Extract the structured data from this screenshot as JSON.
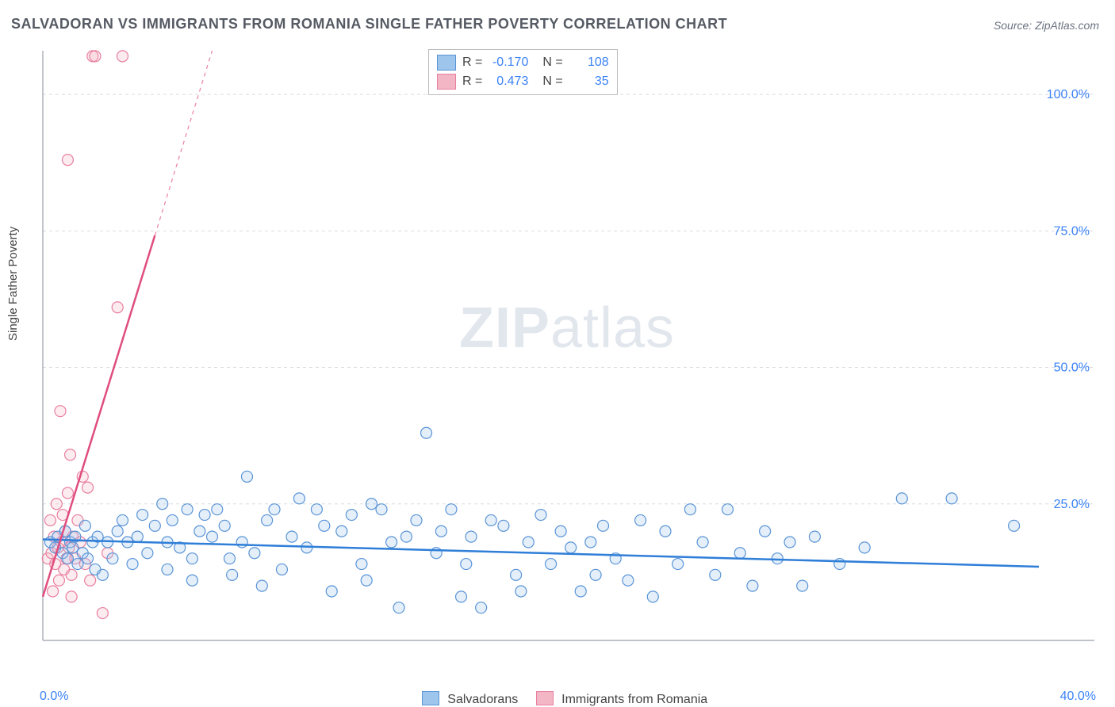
{
  "title": "SALVADORAN VS IMMIGRANTS FROM ROMANIA SINGLE FATHER POVERTY CORRELATION CHART",
  "source_prefix": "Source: ",
  "source": "ZipAtlas.com",
  "y_axis_label": "Single Father Poverty",
  "watermark_bold": "ZIP",
  "watermark_rest": "atlas",
  "chart": {
    "type": "scatter",
    "xlim": [
      0,
      40
    ],
    "ylim": [
      0,
      108
    ],
    "x_ticks": [
      {
        "v": 0,
        "label": "0.0%"
      },
      {
        "v": 40,
        "label": "40.0%"
      }
    ],
    "y_ticks": [
      {
        "v": 25,
        "label": "25.0%"
      },
      {
        "v": 50,
        "label": "50.0%"
      },
      {
        "v": 75,
        "label": "75.0%"
      },
      {
        "v": 100,
        "label": "100.0%"
      }
    ],
    "grid_color": "#d7dbe0",
    "grid_dash": "4,4",
    "axis_color": "#9aa1ab",
    "background_color": "#ffffff",
    "marker_radius": 7,
    "marker_stroke_width": 1.2,
    "marker_fill_opacity": 0.28,
    "regression_line_width": 2.5,
    "series": [
      {
        "name": "Salvadorans",
        "color_fill": "#9ec5ec",
        "color_stroke": "#5a94d6",
        "line_color": "#2f7ed8",
        "R": "-0.170",
        "N": "108",
        "regression": {
          "x1": 0,
          "y1": 18.5,
          "x2": 40,
          "y2": 13.5,
          "dashed_after_x": null
        },
        "points": [
          [
            0.3,
            18
          ],
          [
            0.5,
            17
          ],
          [
            0.6,
            19
          ],
          [
            0.8,
            16
          ],
          [
            0.9,
            20
          ],
          [
            1.0,
            15
          ],
          [
            1.1,
            18
          ],
          [
            1.2,
            17
          ],
          [
            1.3,
            19
          ],
          [
            1.4,
            14
          ],
          [
            1.6,
            16
          ],
          [
            1.7,
            21
          ],
          [
            1.8,
            15
          ],
          [
            2.0,
            18
          ],
          [
            2.1,
            13
          ],
          [
            2.2,
            19
          ],
          [
            2.4,
            12
          ],
          [
            2.6,
            18
          ],
          [
            2.8,
            15
          ],
          [
            3.0,
            20
          ],
          [
            3.2,
            22
          ],
          [
            3.4,
            18
          ],
          [
            3.6,
            14
          ],
          [
            3.8,
            19
          ],
          [
            4.0,
            23
          ],
          [
            4.2,
            16
          ],
          [
            4.5,
            21
          ],
          [
            4.8,
            25
          ],
          [
            5.0,
            18
          ],
          [
            5.2,
            22
          ],
          [
            5.5,
            17
          ],
          [
            5.8,
            24
          ],
          [
            6.0,
            15
          ],
          [
            6.3,
            20
          ],
          [
            6.5,
            23
          ],
          [
            6.8,
            19
          ],
          [
            7.0,
            24
          ],
          [
            7.3,
            21
          ],
          [
            7.6,
            12
          ],
          [
            8.0,
            18
          ],
          [
            8.2,
            30
          ],
          [
            8.5,
            16
          ],
          [
            9.0,
            22
          ],
          [
            9.3,
            24
          ],
          [
            9.6,
            13
          ],
          [
            10.0,
            19
          ],
          [
            10.3,
            26
          ],
          [
            10.6,
            17
          ],
          [
            11.0,
            24
          ],
          [
            11.3,
            21
          ],
          [
            11.6,
            9
          ],
          [
            12.0,
            20
          ],
          [
            12.4,
            23
          ],
          [
            12.8,
            14
          ],
          [
            13.2,
            25
          ],
          [
            13.6,
            24
          ],
          [
            14.0,
            18
          ],
          [
            14.3,
            6
          ],
          [
            14.6,
            19
          ],
          [
            15.0,
            22
          ],
          [
            15.4,
            38
          ],
          [
            15.8,
            16
          ],
          [
            16.0,
            20
          ],
          [
            16.4,
            24
          ],
          [
            16.8,
            8
          ],
          [
            17.2,
            19
          ],
          [
            17.6,
            6
          ],
          [
            18.0,
            22
          ],
          [
            18.5,
            21
          ],
          [
            19.0,
            12
          ],
          [
            19.5,
            18
          ],
          [
            20.0,
            23
          ],
          [
            20.4,
            14
          ],
          [
            20.8,
            20
          ],
          [
            21.2,
            17
          ],
          [
            21.6,
            9
          ],
          [
            22.0,
            18
          ],
          [
            22.5,
            21
          ],
          [
            23.0,
            15
          ],
          [
            23.5,
            11
          ],
          [
            24.0,
            22
          ],
          [
            24.5,
            8
          ],
          [
            25.0,
            20
          ],
          [
            25.5,
            14
          ],
          [
            26.0,
            24
          ],
          [
            26.5,
            18
          ],
          [
            27.0,
            12
          ],
          [
            27.5,
            24
          ],
          [
            28.0,
            16
          ],
          [
            28.5,
            10
          ],
          [
            29.0,
            20
          ],
          [
            29.5,
            15
          ],
          [
            30.0,
            18
          ],
          [
            30.5,
            10
          ],
          [
            31.0,
            19
          ],
          [
            32.0,
            14
          ],
          [
            33.0,
            17
          ],
          [
            34.5,
            26
          ],
          [
            36.5,
            26
          ],
          [
            39.0,
            21
          ],
          [
            5.0,
            13
          ],
          [
            6.0,
            11
          ],
          [
            7.5,
            15
          ],
          [
            8.8,
            10
          ],
          [
            13.0,
            11
          ],
          [
            17.0,
            14
          ],
          [
            19.2,
            9
          ],
          [
            22.2,
            12
          ]
        ]
      },
      {
        "name": "Immigrants from Romania",
        "color_fill": "#f3b6c5",
        "color_stroke": "#e97fa0",
        "line_color": "#e04d7f",
        "R": "0.473",
        "N": "35",
        "regression": {
          "x1": 0,
          "y1": 8,
          "x2": 6.8,
          "y2": 108,
          "dashed_after_x": 4.5
        },
        "points": [
          [
            0.2,
            15
          ],
          [
            0.3,
            22
          ],
          [
            0.35,
            16
          ],
          [
            0.4,
            9
          ],
          [
            0.45,
            19
          ],
          [
            0.5,
            14
          ],
          [
            0.55,
            25
          ],
          [
            0.6,
            17
          ],
          [
            0.65,
            11
          ],
          [
            0.7,
            42
          ],
          [
            0.75,
            18
          ],
          [
            0.8,
            23
          ],
          [
            0.85,
            13
          ],
          [
            0.9,
            20
          ],
          [
            0.95,
            15
          ],
          [
            1.0,
            27
          ],
          [
            1.05,
            17
          ],
          [
            1.1,
            34
          ],
          [
            1.15,
            12
          ],
          [
            1.2,
            19
          ],
          [
            1.3,
            15
          ],
          [
            1.4,
            22
          ],
          [
            1.5,
            18
          ],
          [
            1.6,
            30
          ],
          [
            1.7,
            14
          ],
          [
            1.8,
            28
          ],
          [
            1.9,
            11
          ],
          [
            2.0,
            107
          ],
          [
            2.1,
            107
          ],
          [
            2.4,
            5
          ],
          [
            2.6,
            16
          ],
          [
            3.0,
            61
          ],
          [
            3.2,
            107
          ],
          [
            1.0,
            88
          ],
          [
            1.15,
            8
          ]
        ]
      }
    ]
  },
  "legend_top": {
    "r_label": "R =",
    "n_label": "N ="
  },
  "legend_bottom": {
    "items": [
      "Salvadorans",
      "Immigrants from Romania"
    ]
  }
}
